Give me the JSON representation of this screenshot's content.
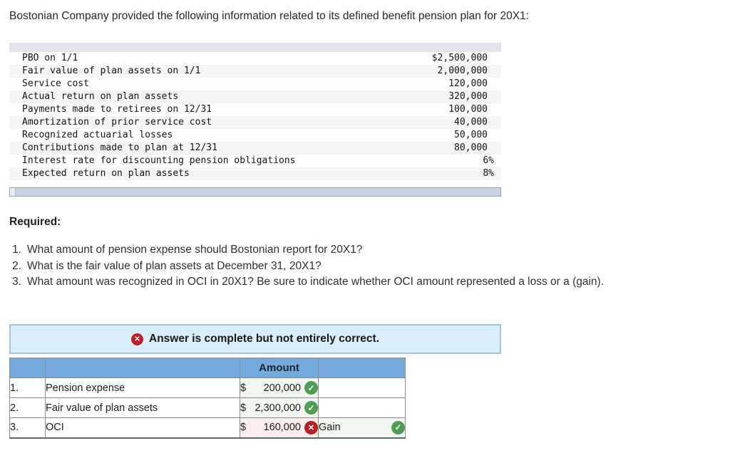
{
  "intro": "Bostonian Company provided the following information related to its defined benefit pension plan for 20X1:",
  "info_table": {
    "rows": [
      {
        "label": "PBO on 1/1",
        "value": "$2,500,000",
        "type": "amount"
      },
      {
        "label": "Fair value of plan assets on 1/1",
        "value": "2,000,000",
        "type": "amount"
      },
      {
        "label": "Service cost",
        "value": "120,000",
        "type": "amount"
      },
      {
        "label": "Actual return on plan assets",
        "value": "320,000",
        "type": "amount"
      },
      {
        "label": "Payments made to retirees on 12/31",
        "value": "100,000",
        "type": "amount"
      },
      {
        "label": "Amortization of prior service cost",
        "value": "40,000",
        "type": "amount"
      },
      {
        "label": "Recognized actuarial losses",
        "value": "50,000",
        "type": "amount"
      },
      {
        "label": "Contributions made to plan at 12/31",
        "value": "80,000",
        "type": "amount"
      },
      {
        "label": "Interest rate for discounting pension obligations",
        "value": "6%",
        "type": "percent"
      },
      {
        "label": "Expected return on plan assets",
        "value": "8%",
        "type": "percent"
      }
    ]
  },
  "required": {
    "heading": "Required:",
    "questions": [
      {
        "num": "1.",
        "text": "What amount of pension expense should Bostonian report for 20X1?"
      },
      {
        "num": "2.",
        "text": "What is the fair value of plan assets at December 31, 20X1?"
      },
      {
        "num": "3.",
        "text": "What amount was recognized in OCI in 20X1? Be sure to indicate whether OCI amount represented a loss or a (gain)."
      }
    ]
  },
  "result_banner": {
    "icon": "x-circle-icon",
    "text": "Answer is complete but not entirely correct."
  },
  "answer_table": {
    "amount_header": "Amount",
    "rows": [
      {
        "num": "1.",
        "label": "Pension expense",
        "currency": "$",
        "amount": "200,000",
        "status": "correct",
        "extra": "",
        "extra_status": ""
      },
      {
        "num": "2.",
        "label": "Fair value of plan assets",
        "currency": "$",
        "amount": "2,300,000",
        "status": "correct",
        "extra": "",
        "extra_status": ""
      },
      {
        "num": "3.",
        "label": "OCI",
        "currency": "$",
        "amount": "160,000",
        "status": "incorrect",
        "extra": "Gain",
        "extra_status": "correct"
      }
    ]
  },
  "colors": {
    "table_header_blue": "#74a9dc",
    "info_header_bar": "#e2e2ee",
    "banner_background": "#d9ecf9",
    "banner_border": "#a4c3e0",
    "correct_green": "#4f9d52",
    "incorrect_red": "#b52025",
    "correct_cell_bg": "#f1f7f0",
    "incorrect_cell_bg": "#fbeeed"
  }
}
